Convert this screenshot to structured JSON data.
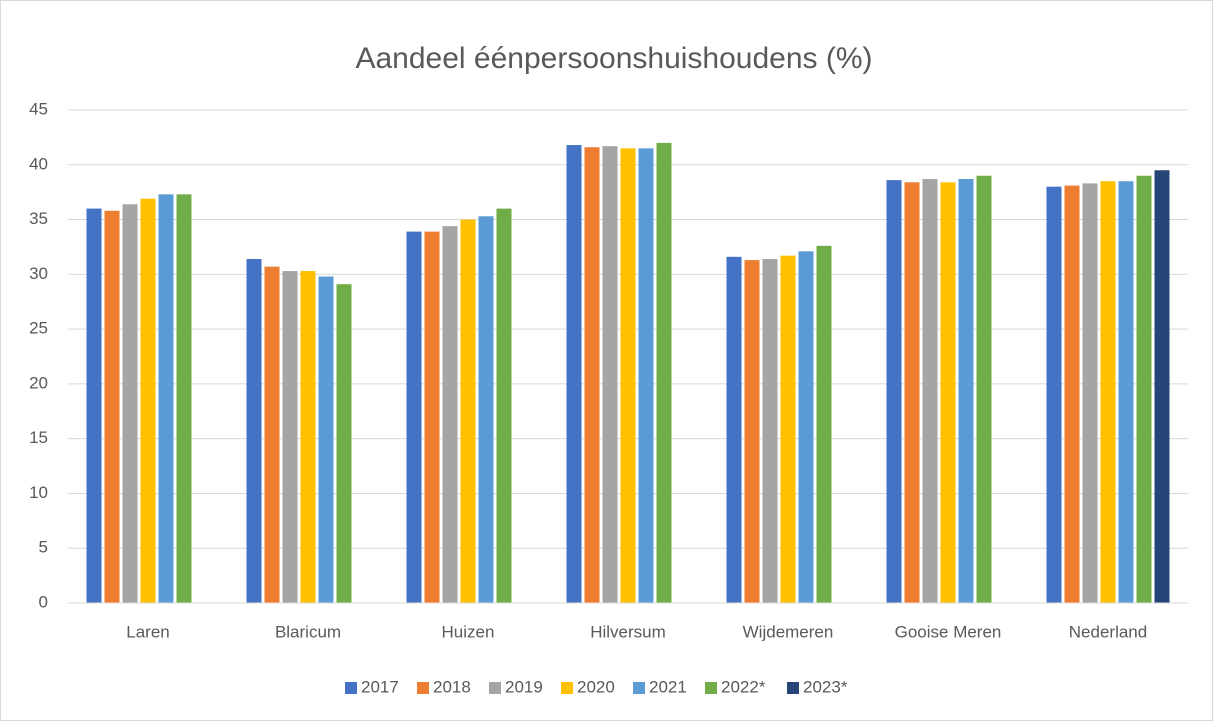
{
  "chart_data": {
    "type": "bar",
    "title": "Aandeel éénpersoonshuishoudens (%)",
    "categories": [
      "Laren",
      "Blaricum",
      "Huizen",
      "Hilversum",
      "Wijdemeren",
      "Gooise Meren",
      "Nederland"
    ],
    "series": [
      {
        "name": "2017",
        "color": "#4472c4",
        "values": [
          36.0,
          31.4,
          33.9,
          41.8,
          31.6,
          38.6,
          38.0
        ]
      },
      {
        "name": "2018",
        "color": "#ed7d31",
        "values": [
          35.8,
          30.7,
          33.9,
          41.6,
          31.3,
          38.4,
          38.1
        ]
      },
      {
        "name": "2019",
        "color": "#a5a5a5",
        "values": [
          36.4,
          30.3,
          34.4,
          41.7,
          31.4,
          38.7,
          38.3
        ]
      },
      {
        "name": "2020",
        "color": "#ffc000",
        "values": [
          36.9,
          30.3,
          35.0,
          41.5,
          31.7,
          38.4,
          38.5
        ]
      },
      {
        "name": "2021",
        "color": "#5b9bd5",
        "values": [
          37.3,
          29.8,
          35.3,
          41.5,
          32.1,
          38.7,
          38.5
        ]
      },
      {
        "name": "2022*",
        "color": "#70ad47",
        "values": [
          37.3,
          29.1,
          36.0,
          42.0,
          32.6,
          39.0,
          39.0
        ]
      },
      {
        "name": "2023*",
        "color": "#264478",
        "values": [
          null,
          null,
          null,
          null,
          null,
          null,
          39.5
        ]
      }
    ],
    "ylim": [
      0,
      45
    ],
    "yticks": [
      0,
      5,
      10,
      15,
      20,
      25,
      30,
      35,
      40,
      45
    ],
    "grid": true,
    "legend": "bottom"
  }
}
